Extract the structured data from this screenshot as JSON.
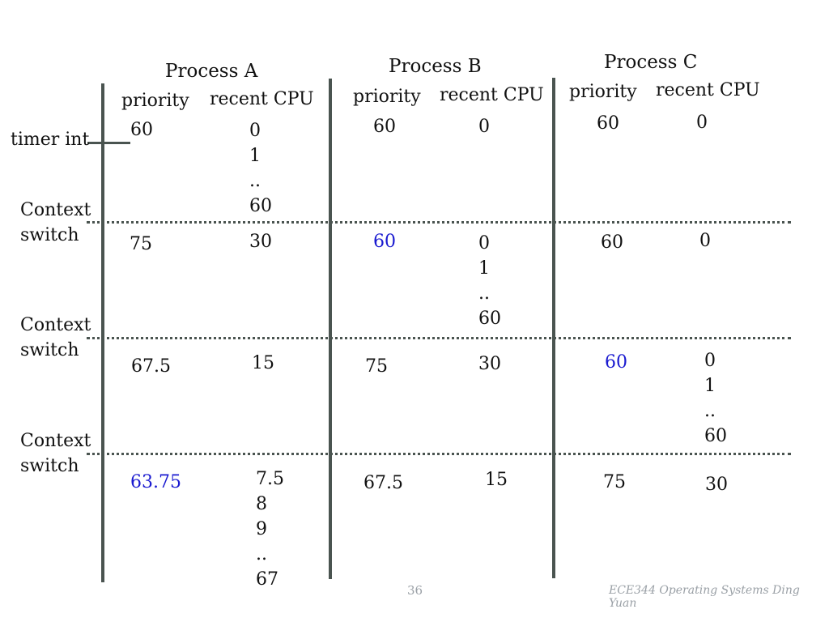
{
  "headers": {
    "process_a": "Process A",
    "process_b": "Process B",
    "process_c": "Process C",
    "priority": "priority",
    "recent_cpu": "recent CPU"
  },
  "labels": {
    "timer_int": "timer int",
    "context_switch_line1": "Context",
    "context_switch_line2": "switch"
  },
  "rows": [
    {
      "a_priority": "60",
      "a_cpu": [
        "0",
        "1",
        "..",
        "60"
      ],
      "b_priority": "60",
      "b_cpu": [
        "0"
      ],
      "c_priority": "60",
      "c_cpu": [
        "0"
      ]
    },
    {
      "a_priority": "75",
      "a_cpu": [
        "30"
      ],
      "b_priority": "60",
      "b_cpu": [
        "0",
        "1",
        "..",
        "60"
      ],
      "c_priority": "60",
      "c_cpu": [
        "0"
      ]
    },
    {
      "a_priority": "67.5",
      "a_cpu": [
        "15"
      ],
      "b_priority": "75",
      "b_cpu": [
        "30"
      ],
      "c_priority": "60",
      "c_cpu": [
        "0",
        "1",
        "..",
        "60"
      ]
    },
    {
      "a_priority": "63.75",
      "a_cpu": [
        "7.5",
        "8",
        "9",
        "..",
        "67"
      ],
      "b_priority": "67.5",
      "b_cpu": [
        "15"
      ],
      "c_priority": "75",
      "c_cpu": [
        "30"
      ]
    }
  ],
  "footer": {
    "page_number": "36",
    "course_title": "ECE344 Operating Systems Ding Yuan"
  },
  "colors": {
    "highlight": "#1a1ad0",
    "line": "#4a5450"
  }
}
